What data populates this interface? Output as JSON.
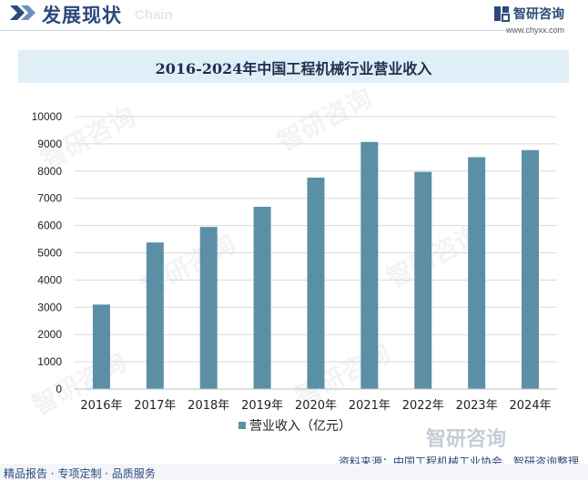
{
  "header": {
    "section_title": "发展现状",
    "section_subtitle": "Chain",
    "brand_name": "智研咨询",
    "brand_url": "www.chyxx.com"
  },
  "chart_data": {
    "type": "bar",
    "title": "2016-2024年中国工程机械行业营业收入",
    "categories": [
      "2016年",
      "2017年",
      "2018年",
      "2019年",
      "2020年",
      "2021年",
      "2022年",
      "2023年",
      "2024年"
    ],
    "series": [
      {
        "name": "营业收入（亿元）",
        "values": [
          3100,
          5380,
          5950,
          6690,
          7760,
          9070,
          7970,
          8510,
          8770
        ]
      }
    ],
    "yticks": [
      "0",
      "1000",
      "2000",
      "3000",
      "4000",
      "5000",
      "6000",
      "7000",
      "8000",
      "9000",
      "10000"
    ],
    "ylim": [
      0,
      10000
    ],
    "grid": true,
    "legend": "bottom",
    "colors": {
      "bar": "#5b8fa6",
      "grid": "#d9d9d9"
    }
  },
  "source": "资料来源：中国工程机械工业协会、智研咨询整理",
  "footer": {
    "tagline": "精品报告 · 专项定制 · 品质服务",
    "watermark": "智研咨询"
  }
}
